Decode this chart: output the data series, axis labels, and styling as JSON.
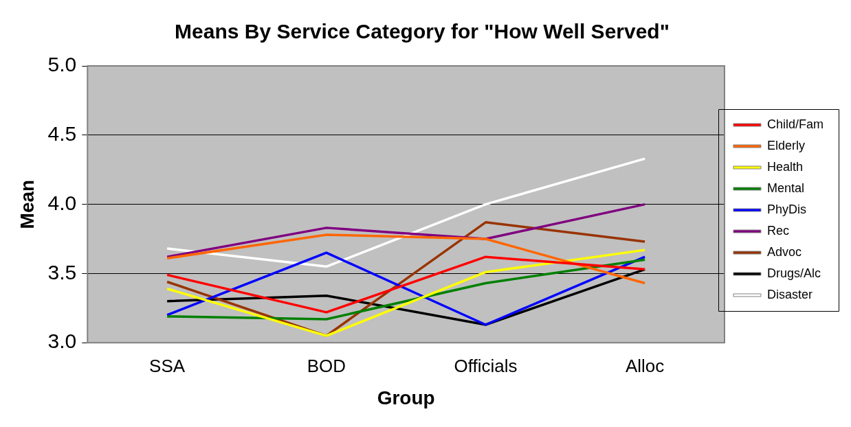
{
  "chart_data": {
    "type": "line",
    "title": "Means By Service Category for \"How Well Served\"",
    "xlabel": "Group",
    "ylabel": "Mean",
    "categories": [
      "SSA",
      "BOD",
      "Officials",
      "Alloc"
    ],
    "series": [
      {
        "name": "Child/Fam",
        "color": "#ff0000",
        "values": [
          3.49,
          3.22,
          3.62,
          3.53
        ]
      },
      {
        "name": "Elderly",
        "color": "#ff6600",
        "values": [
          3.61,
          3.78,
          3.75,
          3.43
        ]
      },
      {
        "name": "Health",
        "color": "#ffff00",
        "values": [
          3.39,
          3.05,
          3.51,
          3.67
        ]
      },
      {
        "name": "Mental",
        "color": "#008000",
        "values": [
          3.19,
          3.17,
          3.43,
          3.6
        ]
      },
      {
        "name": "PhyDis",
        "color": "#0000ff",
        "values": [
          3.2,
          3.65,
          3.13,
          3.62
        ]
      },
      {
        "name": "Rec",
        "color": "#800080",
        "values": [
          3.62,
          3.83,
          3.75,
          4.0
        ]
      },
      {
        "name": "Advoc",
        "color": "#993300",
        "values": [
          3.44,
          3.05,
          3.87,
          3.73
        ]
      },
      {
        "name": "Drugs/Alc",
        "color": "#000000",
        "values": [
          3.3,
          3.34,
          3.13,
          3.53
        ]
      },
      {
        "name": "Disaster",
        "color": "#ffffff",
        "values": [
          3.68,
          3.55,
          4.0,
          4.33
        ]
      }
    ],
    "ylim": [
      3.0,
      5.0
    ],
    "yticks": [
      {
        "value": 3,
        "label": "3.0"
      },
      {
        "value": 3.5,
        "label": "3.5"
      },
      {
        "value": 4,
        "label": "4.0"
      },
      {
        "value": 4.5,
        "label": "4.5"
      },
      {
        "value": 5,
        "label": "5.0"
      }
    ],
    "grid": "y",
    "legend": "right",
    "marker": "none",
    "line_style": "solid"
  }
}
